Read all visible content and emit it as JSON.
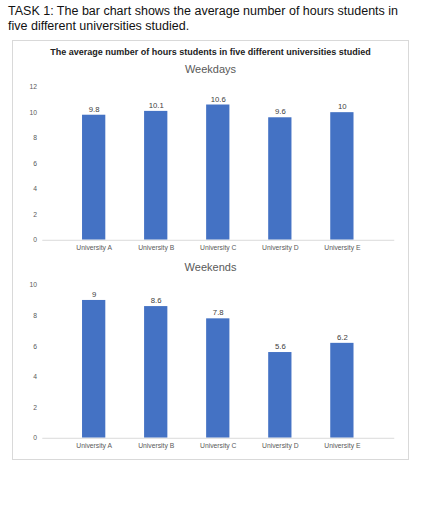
{
  "heading": "TASK 1: The bar chart shows the average number of hours students in five different universities studied.",
  "title": "The average number of hours students in five different universities studied",
  "chart_data": [
    {
      "type": "bar",
      "title": "Weekdays",
      "categories": [
        "University A",
        "University B",
        "University C",
        "University D",
        "University E"
      ],
      "values": [
        9.8,
        10.1,
        10.6,
        9.6,
        10
      ],
      "color": "#4472c4",
      "ylim": [
        0,
        12
      ],
      "yticks": [
        0,
        2,
        4,
        6,
        8,
        10,
        12
      ],
      "grid": false,
      "data_labels": true
    },
    {
      "type": "bar",
      "title": "Weekends",
      "categories": [
        "University A",
        "University B",
        "University C",
        "University D",
        "University E"
      ],
      "values": [
        9,
        8.6,
        7.8,
        5.6,
        6.2
      ],
      "color": "#4472c4",
      "ylim": [
        0,
        10
      ],
      "yticks": [
        0,
        2,
        4,
        6,
        8,
        10
      ],
      "grid": false,
      "data_labels": true
    }
  ]
}
